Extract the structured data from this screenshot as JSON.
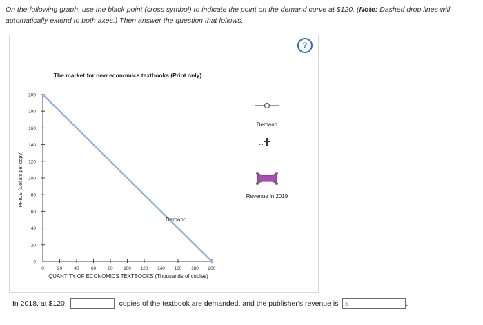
{
  "question": {
    "line1_prefix": "On the following graph, use the black point (cross symbol) to indicate the point on the demand curve at $120. (",
    "line1_note": "Note:",
    "line1_suffix": " Dashed drop lines will",
    "line2": "automatically extend to both axes.) Then answer the question that follows."
  },
  "help_label": "?",
  "graph": {
    "title": "The market for new economics textbooks (Print only)",
    "xlabel": "QUANTITY OF ECONOMICS TEXTBOOKS (Thousands of copies)",
    "ylabel": "PRICE (Dollars per copy)",
    "curve_label": "Demand"
  },
  "legend": {
    "demand_label": "Demand",
    "revenue_label": "Revenue in 2019"
  },
  "colors": {
    "demand_line": "#8fb4dc",
    "demand_marker": "#555555",
    "cross_tool": "#333333",
    "revenue_tool": "#a84db3"
  },
  "chart_data": {
    "type": "line",
    "x_ticks": [
      0,
      20,
      40,
      60,
      80,
      100,
      120,
      140,
      160,
      180,
      200
    ],
    "y_ticks": [
      0,
      20,
      40,
      60,
      80,
      100,
      120,
      140,
      160,
      180,
      200
    ],
    "xlim": [
      0,
      200
    ],
    "ylim": [
      0,
      200
    ],
    "series": [
      {
        "name": "Demand",
        "x": [
          0,
          200
        ],
        "y": [
          200,
          0
        ]
      }
    ]
  },
  "answer": {
    "prefix": "In 2018, at $120,",
    "quantity_value": "",
    "middle": "copies of the textbook are demanded, and the publisher's revenue is",
    "revenue_prefix": "$",
    "revenue_value": "",
    "suffix": "."
  }
}
